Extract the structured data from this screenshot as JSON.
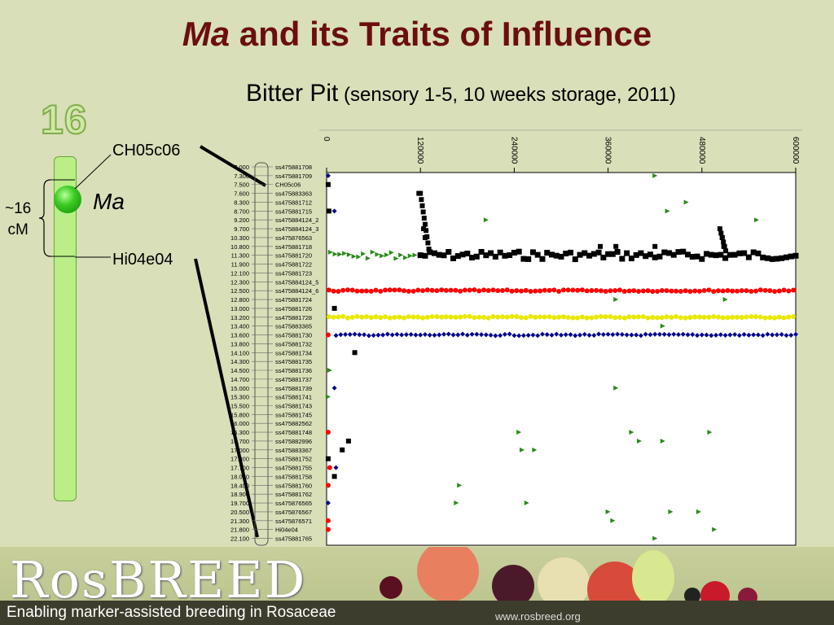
{
  "slide": {
    "title_italic": "Ma",
    "title_rest": " and its Traits of Influence",
    "subtitle_main": "Bitter Pit",
    "subtitle_detail": " (sensory 1-5, 10 weeks storage, 2011)"
  },
  "chromosome": {
    "number": "16",
    "marker_top": "CH05c06",
    "marker_bottom": "Hi04e04",
    "gene": "Ma",
    "interval_line1": "~16",
    "interval_line2": "cM",
    "bar_color": "#b9ef86",
    "gene_color": "#22b01a"
  },
  "chart_data": {
    "type": "scatter",
    "x_ticks": [
      "0",
      "120000",
      "240000",
      "360000",
      "480000",
      "600000"
    ],
    "xlim": [
      0,
      600000
    ],
    "marker_map": {
      "positions": [
        "7.000",
        "7.300",
        "7.500",
        "7.600",
        "8.300",
        "8.700",
        "9.200",
        "9.700",
        "10.300",
        "10.800",
        "11.300",
        "11.900",
        "12.100",
        "12.300",
        "12.500",
        "12.800",
        "13.000",
        "13.200",
        "13.400",
        "13.600",
        "13.800",
        "14.100",
        "14.300",
        "14.500",
        "14.700",
        "15.000",
        "15.300",
        "15.500",
        "15.800",
        "16.000",
        "16.300",
        "16.700",
        "17.000",
        "17.300",
        "17.700",
        "18.000",
        "18.400",
        "18.900",
        "19.700",
        "20.500",
        "21.300",
        "21.800",
        "22.100"
      ],
      "markers": [
        "ss475881708",
        "ss475881709",
        "CH05c06",
        "ss475883363",
        "ss475881712",
        "ss475881715",
        "ss475884124_2",
        "ss475884124_3",
        "ss475876563",
        "ss475881718",
        "ss475881720",
        "ss475881722",
        "ss475881723",
        "ss475884124_5",
        "ss475884124_6",
        "ss475881724",
        "ss475881726",
        "ss475881728",
        "ss475883365",
        "ss475881730",
        "ss475881732",
        "ss475881734",
        "ss475881735",
        "ss475881736",
        "ss475881737",
        "ss475881739",
        "ss475881741",
        "ss475881743",
        "ss475881745",
        "ss475882562",
        "ss475881748",
        "ss475882996",
        "ss475883367",
        "ss475881752",
        "ss475881755",
        "ss475881758",
        "ss475881760",
        "ss475881762",
        "ss475876565",
        "ss475876567",
        "ss475876571",
        "Hi04e04",
        "ss475881765"
      ]
    },
    "series": [
      {
        "color": "#000000",
        "marker": "square",
        "y_marker_index": 10,
        "x_start": 120000,
        "x_end": 600000
      },
      {
        "color": "#2a8a1a",
        "marker": "triangle",
        "y_marker_index": 10,
        "x_start": 5000,
        "x_end": 118000
      },
      {
        "color": "#ff0000",
        "marker": "circle",
        "y_marker_index": 14,
        "x_start": 3000,
        "x_end": 600000
      },
      {
        "color": "#e8e800",
        "marker": "circle",
        "y_marker_index": 17,
        "x_start": 3000,
        "x_end": 600000
      },
      {
        "color": "#00008b",
        "marker": "diamond",
        "y_marker_index": 19,
        "x_start": 12000,
        "x_end": 600000
      }
    ]
  },
  "footer": {
    "logo": "RosBREED",
    "tagline": "Enabling marker-assisted breeding in Rosaceae",
    "website": "www.rosbreed.org"
  }
}
